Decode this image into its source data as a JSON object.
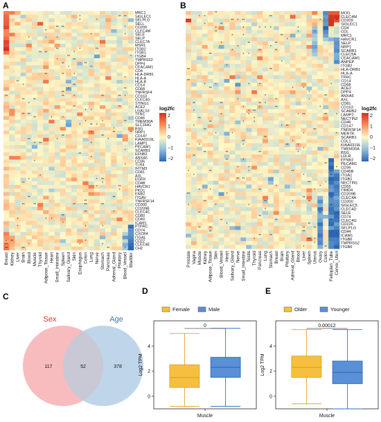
{
  "panels": {
    "A": "A",
    "B": "B",
    "C": "C",
    "D": "D",
    "E": "E"
  },
  "colors": {
    "low": "#2c66b3",
    "mid": "#fff8c6",
    "high": "#d7301f",
    "female": "#f5c040",
    "male": "#5b8fd6",
    "older": "#f5c040",
    "younger": "#5b8fd6",
    "sex_circle": "#f5a5aa",
    "age_circle": "#a9c8e3",
    "sex_label": "#e8392f",
    "age_label": "#3a78b5"
  },
  "chart_data": [
    {
      "type": "heatmap",
      "panel": "A",
      "legend_title": "log2fc",
      "legend_ticks": [
        "2",
        "1",
        "0",
        "−1",
        "−2"
      ],
      "columns": [
        "Breast",
        "Kidney",
        "Liver",
        "Brain",
        "Blood",
        "Muscle",
        "Thyroid",
        "Adipose_Tissue",
        "Heart",
        "Small_Intestine",
        "Spleen",
        "Salivary_Gland",
        "Skin",
        "Esophagus",
        "Colon",
        "Lung",
        "Nerve",
        "Stomach",
        "Pancreas",
        "Adrenal_Gland",
        "Pituitary",
        "Blood_Vessel",
        "Bladder"
      ],
      "rows": [
        "MRC1",
        "SIGLEC1",
        "SELPLG",
        "SELL",
        "CD209",
        "CLEC4M",
        "SELE",
        "SELP",
        "CLEC7A",
        "MSR1",
        "ITGB2",
        "ITGB1",
        "ITGB4",
        "TMPRSS2",
        "DPP4",
        "CEACAM1",
        "CD4",
        "HLA-DRB1",
        "HLA-A",
        "HLA-B",
        "CD14",
        "CD68",
        "TNFRSF4",
        "CD163",
        "CLEC4G",
        "STING1",
        "ACE2",
        "LGALS3",
        "TFRC",
        "CD46",
        "TMEM30A",
        "SLC16A1",
        "BSG",
        "NRP1",
        "CD147",
        "KIAA0319L",
        "LAMP1",
        "PECAM1",
        "SCARB1",
        "EFNB2",
        "ANXA5",
        "CD36",
        "TLR4",
        "IFITM3",
        "CD81",
        "AXL",
        "EGFR",
        "CD4B",
        "HAVCR1",
        "PKD1",
        "ENB2",
        "ITGAV",
        "TNFRSF14",
        "CD300",
        "CD209B",
        "CLEC4C",
        "CD80",
        "CD40",
        "ICAM1",
        "PTPRC",
        "CD74",
        "CXCR4",
        "ITGAL",
        "CD22",
        "CLEC4E",
        "CH2"
      ]
    },
    {
      "type": "heatmap",
      "panel": "B",
      "legend_title": "log2fc",
      "legend_ticks": [
        "2",
        "1",
        "0",
        "−1",
        "−2"
      ],
      "columns": [
        "Prostate",
        "Vagina",
        "Muscle",
        "Kidney",
        "Adipose_Tissue",
        "Skin",
        "Blood_Vessel",
        "Heart",
        "Salivary_Gland",
        "Nerve",
        "Small_Intestine",
        "Testis",
        "Thyroid",
        "Pancreas",
        "Lung",
        "Stomach",
        "Breast",
        "Brain",
        "Pituitary",
        "Adrenal_Gland",
        "Blood",
        "Liver",
        "Spleen",
        "Uterus",
        "Ovary",
        "Colon",
        "Fallopian_Tube",
        "Cervix_Uteri"
      ],
      "rows": [
        "MOG",
        "CLEC4M",
        "CD209",
        "SIGLEC1",
        "CD4",
        "CDL",
        "MRC1",
        "HAVCR1",
        "SELP",
        "NRP1",
        "SCARB1",
        "CLEC5A",
        "CEACAM1",
        "ANPEP",
        "ITGB2",
        "HLA-DRB1",
        "HLA-A",
        "TFRC",
        "CD14",
        "CD68",
        "ACE2",
        "DPP4",
        "ANXA5",
        "AXL",
        "CD81",
        "CD163",
        "SCARB2",
        "LAMP2",
        "NECTIN2",
        "CD46",
        "CD147",
        "TNFRSF14",
        "MERTK",
        "SCARB1",
        "CDL1",
        "KIAA0319L",
        "TMEM30A",
        "BSG",
        "LDLR",
        "EFNB2",
        "PECAM1",
        "CD36",
        "CD46B",
        "ITGA1",
        "ITGB1",
        "NECTIN1",
        "CD55",
        "TIMD4",
        "CD209B",
        "CLEC4A",
        "CD300",
        "SIGLEC5",
        "CLEC4D",
        "SELE",
        "CD74",
        "CLEC4G",
        "CD226",
        "SELPLG",
        "CD44",
        "ICAM1",
        "ITGB6",
        "TMPRSS2",
        "ITGB6"
      ]
    },
    {
      "type": "venn",
      "panel": "C",
      "sets": [
        {
          "name": "Sex",
          "only": 117
        },
        {
          "name": "Age",
          "only": 378
        }
      ],
      "intersection": 52
    },
    {
      "type": "box",
      "panel": "D",
      "legend": [
        "Female",
        "Male"
      ],
      "category": "Muscle",
      "ylabel": "Log2 TPM",
      "ylim": [
        -1,
        6
      ],
      "yticks": [
        0,
        2,
        4
      ],
      "pvalue": "0",
      "boxes": [
        {
          "name": "Female",
          "min": -0.8,
          "q1": 0.7,
          "median": 1.5,
          "q3": 2.5,
          "max": 5.0
        },
        {
          "name": "Male",
          "min": -0.8,
          "q1": 1.5,
          "median": 2.3,
          "q3": 3.1,
          "max": 5.4
        }
      ]
    },
    {
      "type": "box",
      "panel": "E",
      "legend": [
        "Older",
        "Younger"
      ],
      "category": "Muscle",
      "ylabel": "Log2 TPM",
      "ylim": [
        -1,
        6
      ],
      "yticks": [
        0,
        2,
        4
      ],
      "pvalue": "0.00012",
      "boxes": [
        {
          "name": "Older",
          "min": -0.6,
          "q1": 1.5,
          "median": 2.3,
          "q3": 3.2,
          "max": 5.3
        },
        {
          "name": "Younger",
          "min": -1.0,
          "q1": 1.0,
          "median": 1.9,
          "q3": 2.8,
          "max": 5.3
        }
      ]
    }
  ]
}
